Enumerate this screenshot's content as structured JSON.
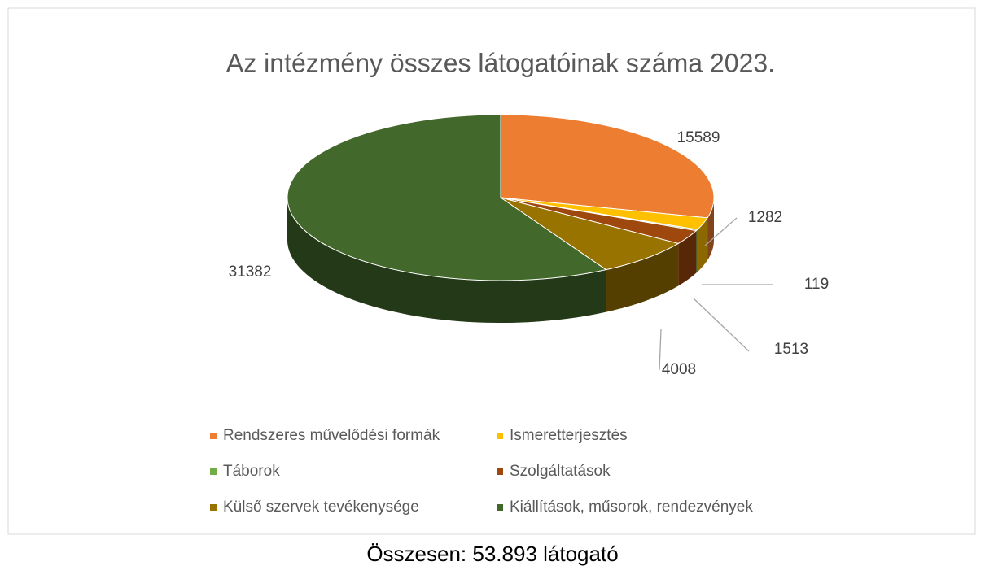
{
  "chart_data": {
    "type": "pie3d",
    "title": "Az intézmény összes látogatóinak száma 2023.",
    "categories": [
      "Rendszeres művelődési formák",
      "Ismeretterjesztés",
      "Táborok",
      "Szolgáltatások",
      "Külső szervek tevékenysége",
      "Kiállítások, műsorok, rendezvények"
    ],
    "values": [
      15589,
      1282,
      119,
      1513,
      4008,
      31382
    ],
    "colors": [
      "#ed7d31",
      "#ffc000",
      "#70ad47",
      "#9e480e",
      "#997300",
      "#43682b"
    ],
    "legend": "bottom",
    "caption": "Összesen: 53.893 látogató"
  }
}
